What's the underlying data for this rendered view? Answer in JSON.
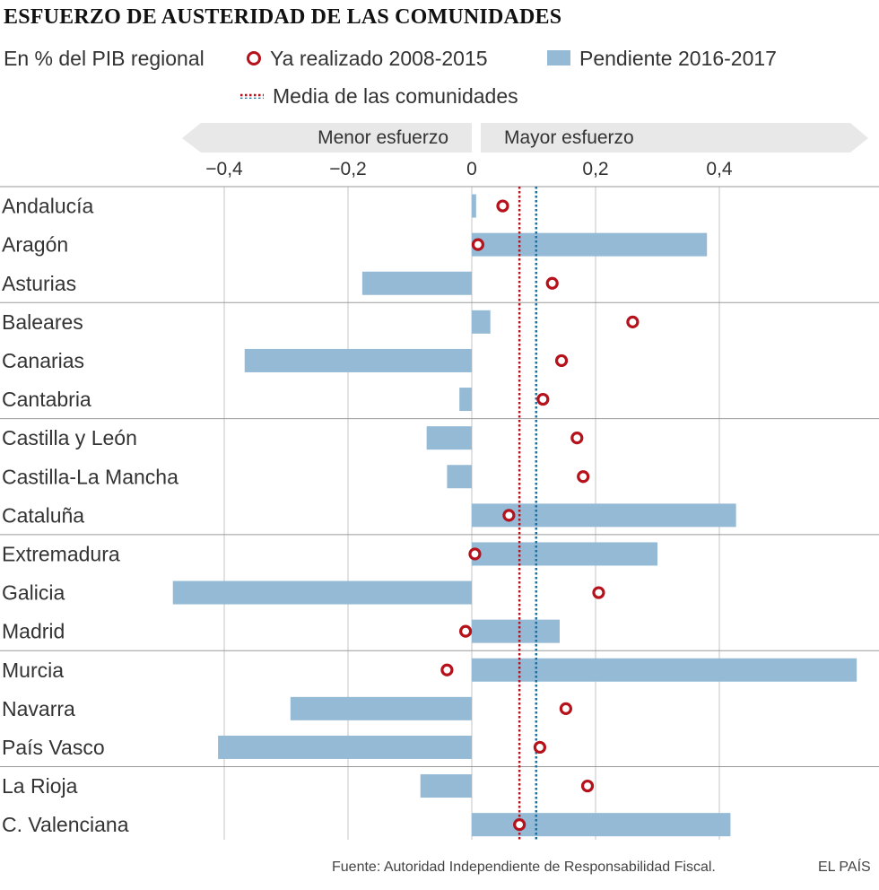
{
  "chart_data": {
    "type": "bar",
    "title": "ESFUERZO DE AUSTERIDAD DE LAS COMUNIDADES",
    "subtitle": "En % del PIB regional",
    "xlim": [
      -0.47,
      0.65
    ],
    "xticks": [
      -0.4,
      -0.2,
      0,
      0.2,
      0.4
    ],
    "xtick_labels": [
      "−0,4",
      "−0,2",
      "0",
      "0,2",
      "0,4"
    ],
    "direction_left": "Menor esfuerzo",
    "direction_right": "Mayor esfuerzo",
    "categories": [
      "Andalucía",
      "Aragón",
      "Asturias",
      "Baleares",
      "Canarias",
      "Cantabria",
      "Castilla y León",
      "Castilla-La Mancha",
      "Cataluña",
      "Extremadura",
      "Galicia",
      "Madrid",
      "Murcia",
      "Navarra",
      "País Vasco",
      "La Rioja",
      "C. Valenciana"
    ],
    "series": [
      {
        "name": "Ya realizado 2008-2015",
        "type": "dot",
        "color": "#b5121b",
        "values": [
          0.05,
          0.01,
          0.13,
          0.26,
          0.145,
          0.115,
          0.17,
          0.18,
          0.06,
          0.005,
          0.205,
          -0.01,
          -0.04,
          0.152,
          0.11,
          0.187,
          0.077
        ]
      },
      {
        "name": "Pendiente 2016-2017",
        "type": "bar",
        "color": "#94bad6",
        "values": [
          0.007,
          0.38,
          -0.177,
          0.03,
          -0.367,
          -0.02,
          -0.073,
          -0.04,
          0.427,
          0.3,
          -0.483,
          0.142,
          0.622,
          -0.293,
          -0.41,
          -0.083,
          0.418
        ]
      }
    ],
    "mean_lines": [
      {
        "label": "Media de las comunidades",
        "value": 0.077,
        "color": "#b5121b"
      },
      {
        "label": "Media de las comunidades",
        "value": 0.104,
        "color": "#1f6e9e"
      }
    ],
    "group_size": 3,
    "legend_position": "top"
  },
  "legend": {
    "dot_label": "Ya realizado 2008-2015",
    "bar_label": "Pendiente 2016-2017",
    "mean_label": "Media de las comunidades"
  },
  "footer": {
    "source": "Fuente: Autoridad Independiente de Responsabilidad Fiscal.",
    "brand": "EL PAÍS"
  }
}
